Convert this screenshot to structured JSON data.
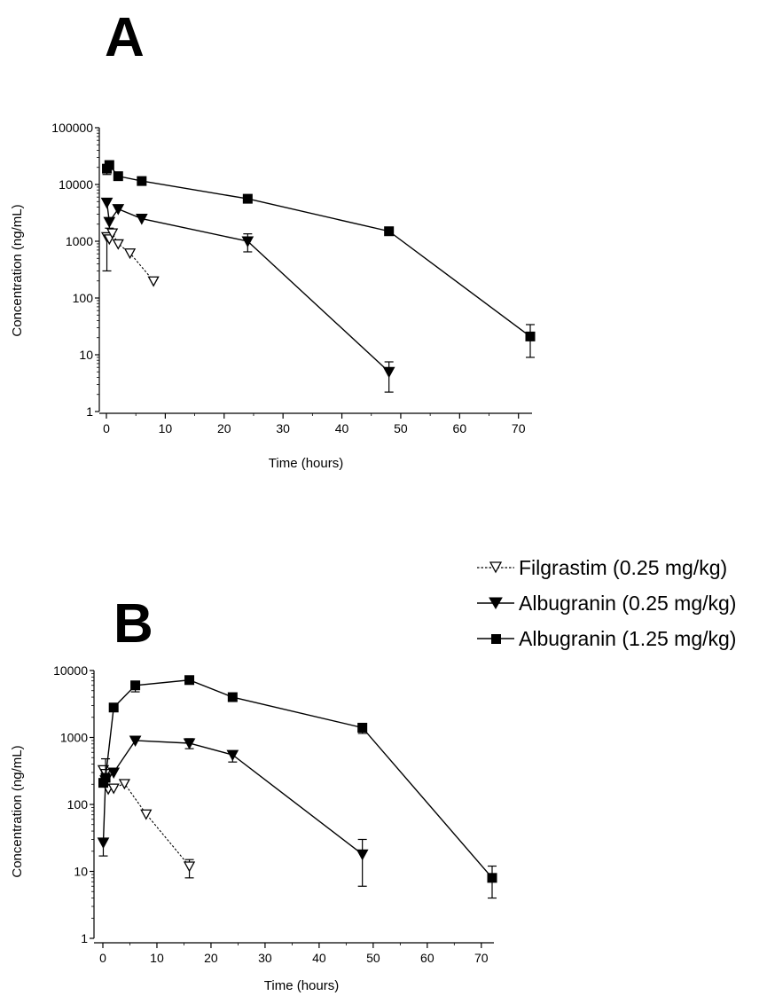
{
  "legend": [
    {
      "label": "Filgrastim (0.25 mg/kg)",
      "marker": "triangle-down-open",
      "line": "dashed"
    },
    {
      "label": "Albugranin (0.25 mg/kg)",
      "marker": "triangle-down-filled",
      "line": "solid"
    },
    {
      "label": "Albugranin (1.25 mg/kg)",
      "marker": "square-filled",
      "line": "solid"
    }
  ],
  "colors": {
    "ink": "#000000",
    "background": "#ffffff"
  },
  "chart_data": [
    {
      "type": "line",
      "panel_label": "A",
      "xlabel": "Time (hours)",
      "ylabel": "Concentration (ng/mL)",
      "yscale": "log",
      "xlim": [
        0,
        72
      ],
      "ylim": [
        1,
        100000
      ],
      "xticks": [
        "0",
        "10",
        "20",
        "30",
        "40",
        "50",
        "60",
        "70"
      ],
      "yticks": [
        "1",
        "10",
        "100",
        "1000",
        "10000",
        "100000"
      ],
      "legend_position": "below-right",
      "series": [
        {
          "name": "Filgrastim (0.25 mg/kg)",
          "marker": "triangle-down-open",
          "line": "dashed",
          "x": [
            0.08,
            0.5,
            1,
            2,
            4,
            8
          ],
          "y": [
            1200,
            1100,
            1400,
            900,
            620,
            200
          ],
          "err_low": [
            300,
            null,
            null,
            null,
            null,
            null
          ],
          "err_high": [
            null,
            null,
            null,
            null,
            null,
            null
          ]
        },
        {
          "name": "Albugranin (0.25 mg/kg)",
          "marker": "triangle-down-filled",
          "line": "solid",
          "x": [
            0.08,
            0.5,
            2,
            6,
            24,
            48
          ],
          "y": [
            4800,
            2200,
            3700,
            2500,
            1000,
            5
          ],
          "err_low": [
            null,
            1700,
            null,
            null,
            650,
            2.2
          ],
          "err_high": [
            null,
            null,
            null,
            null,
            1350,
            7.5
          ]
        },
        {
          "name": "Albugranin (1.25 mg/kg)",
          "marker": "square-filled",
          "line": "solid",
          "x": [
            0.08,
            0.5,
            2,
            6,
            24,
            48,
            72
          ],
          "y": [
            19000,
            22000,
            14000,
            11500,
            5600,
            1500,
            21
          ],
          "err_low": [
            15000,
            null,
            null,
            null,
            null,
            null,
            9
          ],
          "err_high": [
            null,
            null,
            null,
            null,
            null,
            null,
            34
          ]
        }
      ]
    },
    {
      "type": "line",
      "panel_label": "B",
      "xlabel": "Time (hours)",
      "ylabel": "Concentration (ng/mL)",
      "yscale": "log",
      "xlim": [
        0,
        72
      ],
      "ylim": [
        1,
        10000
      ],
      "xticks": [
        "0",
        "10",
        "20",
        "30",
        "40",
        "50",
        "60",
        "70"
      ],
      "yticks": [
        "1",
        "10",
        "100",
        "1000",
        "10000"
      ],
      "legend_position": "top-right",
      "series": [
        {
          "name": "Filgrastim (0.25 mg/kg)",
          "marker": "triangle-down-open",
          "line": "dashed",
          "x": [
            0.08,
            0.5,
            1,
            2,
            4,
            8,
            16
          ],
          "y": [
            330,
            290,
            170,
            175,
            205,
            72,
            12
          ],
          "err_low": [
            null,
            null,
            null,
            null,
            null,
            null,
            8
          ],
          "err_high": [
            null,
            null,
            null,
            null,
            null,
            null,
            15
          ]
        },
        {
          "name": "Albugranin (0.25 mg/kg)",
          "marker": "triangle-down-filled",
          "line": "solid",
          "x": [
            0.08,
            0.5,
            2,
            6,
            16,
            24,
            48
          ],
          "y": [
            27,
            230,
            300,
            900,
            820,
            550,
            18
          ],
          "err_low": [
            17,
            null,
            null,
            null,
            680,
            430,
            6
          ],
          "err_high": [
            null,
            480,
            null,
            null,
            960,
            null,
            30
          ]
        },
        {
          "name": "Albugranin (1.25 mg/kg)",
          "marker": "square-filled",
          "line": "solid",
          "x": [
            0.08,
            0.5,
            2,
            6,
            16,
            24,
            48,
            72
          ],
          "y": [
            210,
            250,
            2800,
            6000,
            7200,
            4000,
            1400,
            8
          ],
          "err_low": [
            null,
            null,
            null,
            4800,
            null,
            null,
            1150,
            4
          ],
          "err_high": [
            null,
            null,
            null,
            6800,
            null,
            null,
            1600,
            12
          ]
        }
      ]
    }
  ]
}
